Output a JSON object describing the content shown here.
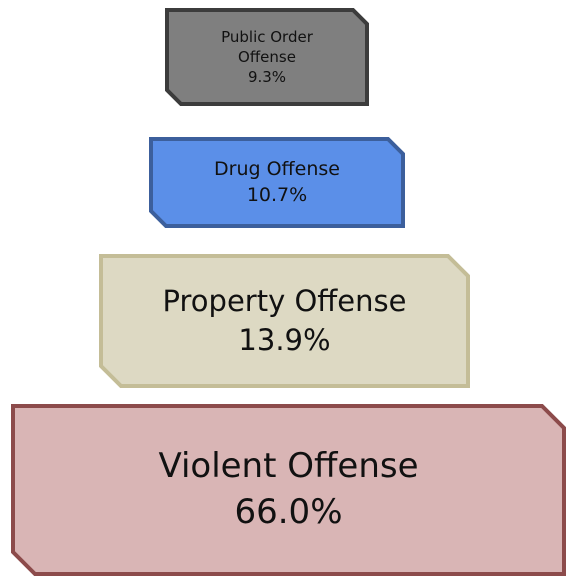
{
  "nodes": [
    {
      "label": "Public Order Offense",
      "value": "9.3%"
    },
    {
      "label": "Drug Offense",
      "value": "10.7%"
    },
    {
      "label": "Property Offense",
      "value": "13.9%"
    },
    {
      "label": "Violent Offense",
      "value": "66.0%"
    }
  ]
}
